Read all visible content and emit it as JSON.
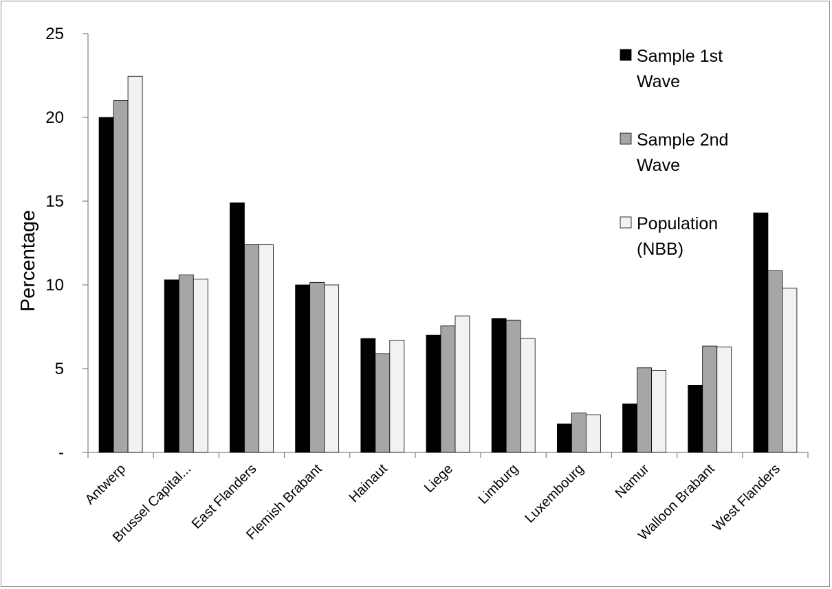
{
  "chart_data": {
    "type": "bar",
    "title": "",
    "xlabel": "",
    "ylabel": "Percentage",
    "ylim": [
      0,
      25
    ],
    "yticks": [
      {
        "value": 0,
        "label": "-"
      },
      {
        "value": 5,
        "label": "5"
      },
      {
        "value": 10,
        "label": "10"
      },
      {
        "value": 15,
        "label": "15"
      },
      {
        "value": 20,
        "label": "20"
      },
      {
        "value": 25,
        "label": "25"
      }
    ],
    "categories": [
      "Antwerp",
      "Brussel Capital...",
      "East Flanders",
      "Flemish Brabant",
      "Hainaut",
      "Liege",
      "Limburg",
      "Luxembourg",
      "Namur",
      "Walloon Brabant",
      "West Flanders"
    ],
    "series": [
      {
        "name": "Sample 1st Wave",
        "legend_lines": [
          "Sample 1st",
          "Wave"
        ],
        "color": "#000000",
        "values": [
          20.0,
          10.3,
          14.9,
          10.0,
          6.8,
          7.0,
          8.0,
          1.7,
          2.9,
          4.0,
          14.3
        ]
      },
      {
        "name": "Sample 2nd Wave",
        "legend_lines": [
          "Sample 2nd",
          "Wave"
        ],
        "color": "#a6a6a6",
        "values": [
          21.0,
          10.6,
          12.4,
          10.15,
          5.9,
          7.55,
          7.9,
          2.35,
          5.05,
          6.35,
          10.85
        ]
      },
      {
        "name": "Population (NBB)",
        "legend_lines": [
          "Population",
          "(NBB)"
        ],
        "color": "#f2f2f2",
        "values": [
          22.45,
          10.35,
          12.4,
          10.0,
          6.7,
          8.15,
          6.8,
          2.25,
          4.9,
          6.3,
          9.8
        ]
      }
    ],
    "grid": false,
    "legend_position": "top-right"
  }
}
